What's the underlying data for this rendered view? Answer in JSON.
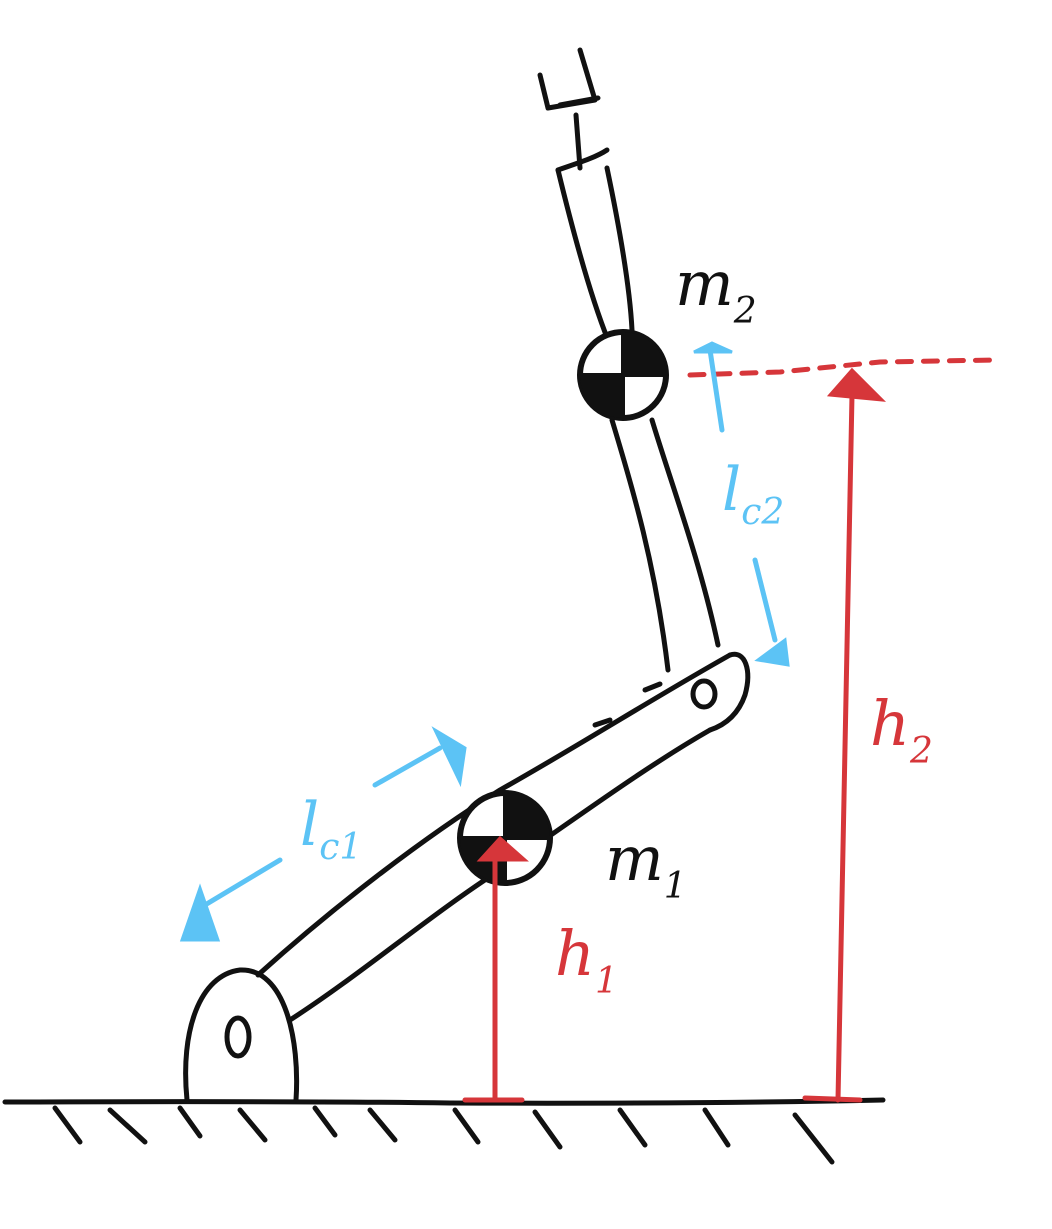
{
  "labels": {
    "m1": {
      "main": "m",
      "sub": "1"
    },
    "m2": {
      "main": "m",
      "sub": "2"
    },
    "h1": {
      "main": "h",
      "sub": "1"
    },
    "h2": {
      "main": "h",
      "sub": "2"
    },
    "lc1": {
      "main": "l",
      "sub": "c1"
    },
    "lc2": {
      "main": "l",
      "sub": "c2"
    }
  },
  "colors": {
    "ink": "#111111",
    "height_arrows": "#d6363a",
    "length_arrows": "#5cc3f5",
    "background": "#ffffff"
  },
  "icons": {
    "end_effector": "gripper-icon",
    "center_of_mass": "checkered-circle-icon",
    "ground": "hatched-ground-icon"
  }
}
